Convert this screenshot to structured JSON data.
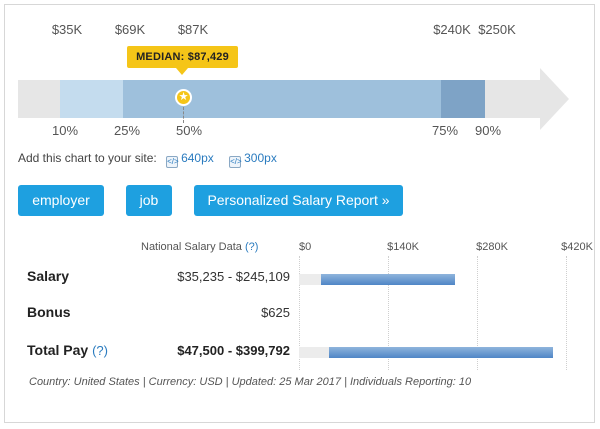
{
  "distribution": {
    "top_labels": [
      "$35K",
      "$69K",
      "$87K",
      "$240K",
      "$250K"
    ],
    "bottom_labels": [
      "10%",
      "25%",
      "50%",
      "75%",
      "90%"
    ],
    "median_label": "MEDIAN: $87,429",
    "median_icon": "star-icon",
    "colors": {
      "arrow": "#e6e6e6",
      "p10_p25": "#c4dcee",
      "p25_p75": "#9ec0dc",
      "p75_p90": "#7ea3c6",
      "median_badge": "#f5c518"
    }
  },
  "embed": {
    "prompt": "Add this chart to your site:",
    "size_1": "640px",
    "size_2": "300px"
  },
  "buttons": {
    "employer": "employer",
    "job": "job",
    "report": "Personalized Salary Report »"
  },
  "table": {
    "column_header": "National Salary Data",
    "help": "(?)",
    "axis_ticks": [
      "$0",
      "$140K",
      "$280K",
      "$420K"
    ],
    "rows": [
      {
        "label": "Salary",
        "value": "$35,235 - $245,109",
        "range_min": 35235,
        "range_max": 245109
      },
      {
        "label": "Bonus",
        "value": "$625"
      },
      {
        "label": "Total Pay",
        "help": "(?)",
        "value": "$47,500 - $399,792",
        "range_min": 47500,
        "range_max": 399792
      }
    ],
    "axis_max": 420000,
    "bar_color": "#4f86c6"
  },
  "footer": {
    "meta": "Country: United States | Currency: USD | Updated: 25 Mar 2017 | Individuals Reporting: 10"
  }
}
